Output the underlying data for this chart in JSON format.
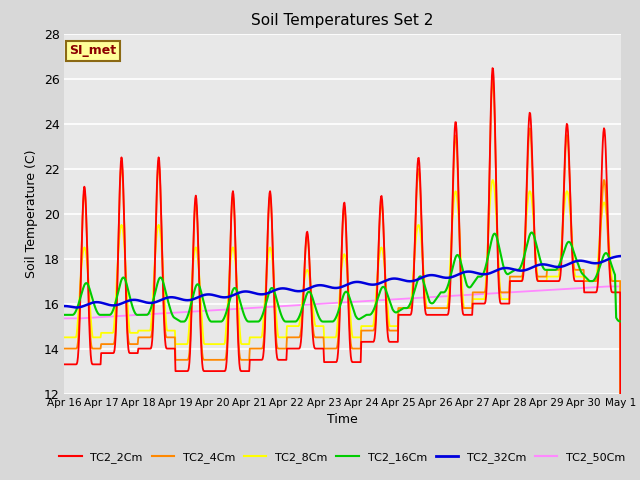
{
  "title": "Soil Temperatures Set 2",
  "xlabel": "Time",
  "ylabel": "Soil Temperature (C)",
  "ylim": [
    12,
    28
  ],
  "yticks": [
    12,
    14,
    16,
    18,
    20,
    22,
    24,
    26,
    28
  ],
  "background_color": "#d8d8d8",
  "plot_bg_color": "#e8e8e8",
  "annotation_text": "SI_met",
  "annotation_bg": "#ffff99",
  "annotation_border": "#8B6914",
  "annotation_text_color": "#8B0000",
  "series_colors": {
    "TC2_2Cm": "#ff0000",
    "TC2_4Cm": "#ff8800",
    "TC2_8Cm": "#ffff00",
    "TC2_16Cm": "#00cc00",
    "TC2_32Cm": "#0000dd",
    "TC2_50Cm": "#ff88ff"
  },
  "legend_colors": [
    "#ff0000",
    "#ff8800",
    "#ffff00",
    "#00cc00",
    "#0000dd",
    "#ff88ff"
  ],
  "legend_labels": [
    "TC2_2Cm",
    "TC2_4Cm",
    "TC2_8Cm",
    "TC2_16Cm",
    "TC2_32Cm",
    "TC2_50Cm"
  ],
  "xtick_labels": [
    "Apr 16",
    "Apr 17",
    "Apr 18",
    "Apr 19",
    "Apr 20",
    "Apr 21",
    "Apr 22",
    "Apr 23",
    "Apr 24",
    "Apr 25",
    "Apr 26",
    "Apr 27",
    "Apr 28",
    "Apr 29",
    "Apr 30",
    "May 1"
  ],
  "n_points": 960,
  "days": 15
}
